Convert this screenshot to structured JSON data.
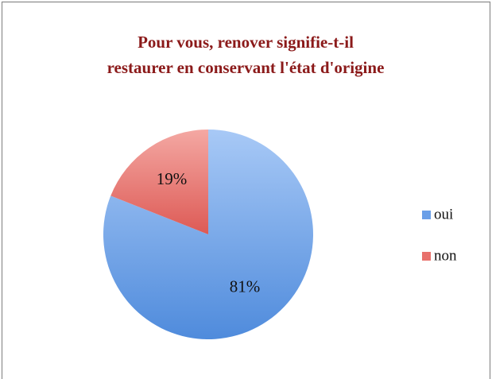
{
  "chart_data": {
    "type": "pie",
    "title": [
      "Pour vous, renover signifie-t-il",
      "restaurer en conservant l'état d'origine"
    ],
    "categories": [
      "oui",
      "non"
    ],
    "values": [
      81,
      19
    ],
    "value_labels": [
      "81%",
      "19%"
    ],
    "colors": [
      "#6a9fe8",
      "#e8716c"
    ],
    "legend": "right"
  }
}
